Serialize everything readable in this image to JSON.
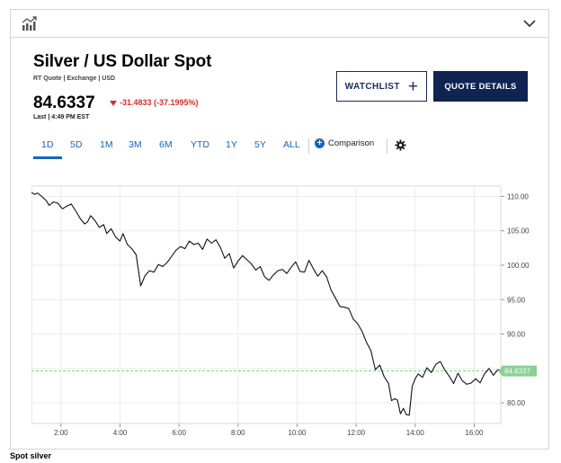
{
  "header": {
    "chart_icon": "bar-chart-icon",
    "collapse_icon": "chevron-down-icon"
  },
  "quote": {
    "title": "Silver / US Dollar Spot",
    "subtitle": "RT Quote | Exchange | USD",
    "price": "84.6337",
    "change": "-31.4833 (-37.1995%)",
    "direction": "down",
    "last": "Last | 4:49 PM EST",
    "down_color": "#d32f2f"
  },
  "actions": {
    "watchlist_label": "WATCHLIST",
    "watchlist_icon": "plus-icon",
    "quote_details_label": "QUOTE DETAILS"
  },
  "ranges": {
    "tabs": [
      "1D",
      "5D",
      "1M",
      "3M",
      "6M",
      "YTD",
      "1Y",
      "5Y",
      "ALL"
    ],
    "active": "1D",
    "comparison_label": "Comparison",
    "comparison_icon": "plus-circle-icon",
    "settings_icon": "gear-icon",
    "accent": "#1565c0"
  },
  "chart_data": {
    "type": "line",
    "title": "",
    "xlabel": "",
    "ylabel": "",
    "x_ticks": [
      "2:00",
      "4:00",
      "6:00",
      "8:00",
      "10:00",
      "12:00",
      "14:00",
      "16:00"
    ],
    "y_ticks": [
      "110.00",
      "105.00",
      "100.00",
      "95.00",
      "90.00",
      "85.00",
      "80.00"
    ],
    "ylim": [
      77.0,
      111.5
    ],
    "xlim": [
      1.0,
      16.9
    ],
    "grid": true,
    "last_value_label": "84.6337",
    "reference_line_value": 84.6337,
    "series": [
      {
        "x": [
          1.0,
          1.1,
          1.2,
          1.35,
          1.5,
          1.6,
          1.75,
          1.9,
          2.05,
          2.2,
          2.35,
          2.5,
          2.65,
          2.8,
          2.9,
          3.0,
          3.15,
          3.3,
          3.45,
          3.55,
          3.7,
          3.85,
          4.0,
          4.1,
          4.25,
          4.4,
          4.55,
          4.7,
          4.85,
          5.0,
          5.15,
          5.3,
          5.45,
          5.6,
          5.75,
          5.9,
          6.05,
          6.2,
          6.35,
          6.5,
          6.65,
          6.8,
          6.95,
          7.1,
          7.25,
          7.4,
          7.55,
          7.7,
          7.85,
          8.0,
          8.15,
          8.3,
          8.45,
          8.6,
          8.75,
          8.9,
          9.05,
          9.2,
          9.35,
          9.5,
          9.65,
          9.8,
          9.95,
          10.1,
          10.25,
          10.4,
          10.55,
          10.7,
          10.85,
          11.0,
          11.15,
          11.3,
          11.45,
          11.6,
          11.75,
          11.9,
          12.05,
          12.2,
          12.35,
          12.5,
          12.65,
          12.8,
          12.95,
          13.1,
          13.2,
          13.3,
          13.4,
          13.5,
          13.6,
          13.7,
          13.8,
          13.9,
          14.0,
          14.1,
          14.25,
          14.4,
          14.55,
          14.7,
          14.85,
          15.0,
          15.15,
          15.3,
          15.45,
          15.6,
          15.75,
          15.9,
          16.05,
          16.2,
          16.35,
          16.5,
          16.65,
          16.8,
          16.9
        ],
        "values": [
          110.6,
          110.3,
          110.5,
          110.0,
          109.4,
          108.7,
          109.2,
          109.0,
          108.2,
          108.6,
          108.9,
          107.9,
          106.8,
          106.0,
          106.3,
          107.2,
          106.5,
          105.5,
          105.9,
          104.6,
          105.3,
          104.1,
          103.5,
          104.6,
          103.0,
          102.4,
          101.5,
          97.0,
          98.5,
          99.2,
          99.0,
          100.1,
          99.8,
          100.4,
          101.3,
          102.2,
          102.7,
          102.4,
          103.5,
          103.0,
          103.2,
          102.3,
          103.8,
          103.2,
          103.7,
          102.6,
          101.0,
          101.7,
          99.6,
          100.6,
          101.4,
          100.8,
          100.2,
          99.3,
          99.8,
          98.3,
          97.8,
          98.6,
          99.2,
          99.4,
          98.8,
          99.7,
          100.5,
          99.1,
          99.0,
          100.7,
          99.5,
          98.4,
          99.2,
          98.3,
          96.4,
          95.2,
          94.0,
          93.9,
          93.7,
          92.2,
          91.5,
          90.4,
          88.8,
          87.6,
          84.8,
          85.5,
          83.8,
          82.8,
          80.3,
          80.6,
          80.4,
          78.4,
          79.2,
          78.3,
          78.2,
          82.4,
          83.5,
          84.2,
          83.7,
          85.1,
          84.4,
          85.6,
          86.0,
          84.8,
          83.9,
          82.8,
          84.3,
          83.2,
          82.7,
          82.9,
          83.5,
          82.9,
          84.2,
          85.0,
          84.0,
          84.8,
          84.6337
        ]
      }
    ]
  },
  "caption": "Spot silver"
}
